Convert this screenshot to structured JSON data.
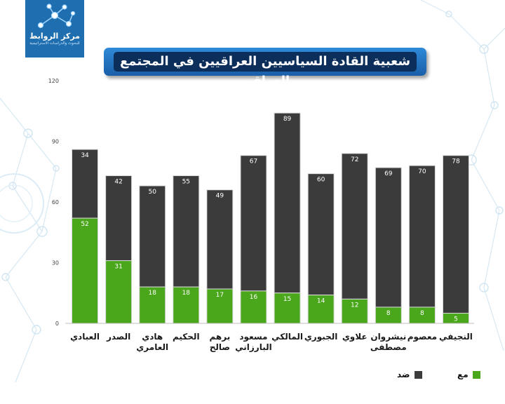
{
  "logo": {
    "name": "مركز الروابط",
    "subtitle": "للبحوث والدراسات الاستراتيجية"
  },
  "colors": {
    "support": "#4aa61a",
    "oppose": "#3b3b3b",
    "axis_text": "#444444"
  },
  "chart_data": {
    "type": "bar",
    "stacked": true,
    "title": "شعبية القادة السياسيين العراقيين في المجتمع العراقي",
    "categories": [
      "العبادي",
      "الصدر",
      "هادي العامري",
      "الحكيم",
      "برهم صالح",
      "مسعود البارزاني",
      "المالكي",
      "الجبوري",
      "علاوي",
      "نيشروان مصطفى",
      "معصوم",
      "النجيفي"
    ],
    "category_lines": [
      [
        "العبادي"
      ],
      [
        "الصدر"
      ],
      [
        "هادي",
        "العامري"
      ],
      [
        "الحكيم"
      ],
      [
        "برهم",
        "صالح"
      ],
      [
        "مسعود",
        "البارزاني"
      ],
      [
        "المالكي"
      ],
      [
        "الجبوري"
      ],
      [
        "علاوي"
      ],
      [
        "نيشروان",
        "مصطفى"
      ],
      [
        "معصوم"
      ],
      [
        "النجيفي"
      ]
    ],
    "series": [
      {
        "name": "مع",
        "values": [
          52,
          31,
          18,
          18,
          17,
          16,
          15,
          14,
          12,
          8,
          8,
          5
        ]
      },
      {
        "name": "ضد",
        "values": [
          34,
          42,
          50,
          55,
          49,
          67,
          89,
          60,
          72,
          69,
          70,
          78
        ]
      }
    ],
    "ylim": [
      0,
      120
    ],
    "yticks": [
      0,
      30,
      60,
      90,
      120
    ],
    "grid": false,
    "legend_position": "bottom-right",
    "xlabel": "",
    "ylabel": ""
  }
}
